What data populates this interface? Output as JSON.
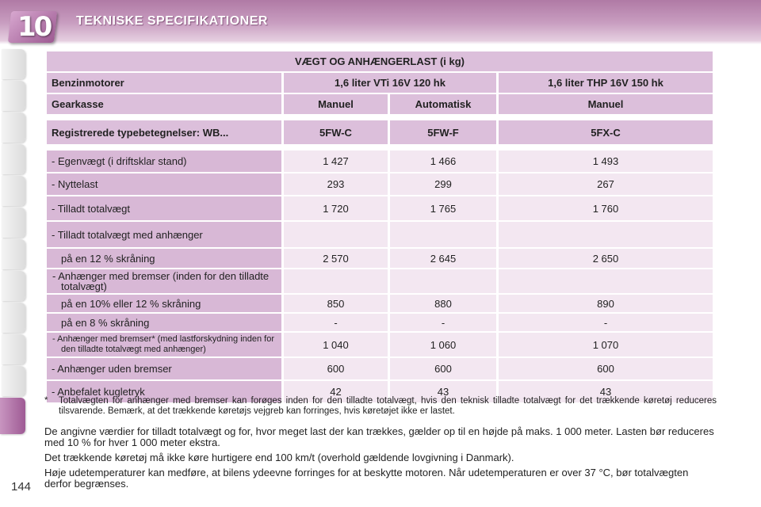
{
  "header": {
    "chapter_number": "10",
    "chapter_title": "TEKNISKE SPECIFIKATIONER"
  },
  "table": {
    "title": "VÆGT OG ANHÆNGERLAST (i kg)",
    "engine_label": "Benzinmotorer",
    "engine_1": "1,6 liter VTi 16V 120 hk",
    "engine_2": "1,6 liter THP 16V 150 hk",
    "gearbox_label": "Gearkasse",
    "gearbox_1": "Manuel",
    "gearbox_2": "Automatisk",
    "gearbox_3": "Manuel",
    "type_label": "Registrerede typebetegnelser: WB...",
    "type_1": "5FW-C",
    "type_2": "5FW-F",
    "type_3": "5FX-C",
    "rows": [
      {
        "label": "- Egenvægt (i driftsklar stand)",
        "v1": "1 427",
        "v2": "1 466",
        "v3": "1 493"
      },
      {
        "label": "- Nyttelast",
        "v1": "293",
        "v2": "299",
        "v3": "267"
      },
      {
        "label": "- Tilladt totalvægt",
        "v1": "1 720",
        "v2": "1 765",
        "v3": "1 760"
      },
      {
        "label": "- Tilladt totalvægt med anhænger",
        "v1": "",
        "v2": "",
        "v3": ""
      },
      {
        "label": "på en 12 % skråning",
        "v1": "2 570",
        "v2": "2 645",
        "v3": "2 650"
      },
      {
        "label": "- Anhænger med bremser (inden for den tilladte totalvægt)",
        "v1": "",
        "v2": "",
        "v3": ""
      },
      {
        "label": "på en 10% eller 12 % skråning",
        "v1": "850",
        "v2": "880",
        "v3": "890"
      },
      {
        "label": "på en 8 % skråning",
        "v1": "-",
        "v2": "-",
        "v3": "-"
      },
      {
        "label": "- Anhænger med bremser* (med lastforskydning inden for den tilladte totalvægt med anhænger)",
        "v1": "1 040",
        "v2": "1 060",
        "v3": "1 070"
      },
      {
        "label": "- Anhænger uden bremser",
        "v1": "600",
        "v2": "600",
        "v3": "600"
      },
      {
        "label": "- Anbefalet kugletryk",
        "v1": "42",
        "v2": "43",
        "v3": "43"
      }
    ]
  },
  "notes": {
    "footnote_star": "*",
    "footnote_text": "Totalvægten for anhænger med bremser kan forøges inden for den tilladte totalvægt, hvis den teknisk tilladte totalvægt for det trækkende køretøj reduceres tilsvarende. Bemærk, at det trækkende køretøjs vejgreb kan forringes, hvis køretøjet ikke er lastet.",
    "para_1": "De angivne værdier for tilladt totalvægt og for, hvor meget last der kan trækkes, gælder op til en højde på maks. 1 000 meter. Lasten bør reduceres med 10 % for hver 1 000 meter ekstra.",
    "para_2": "Det trækkende køretøj må ikke køre hurtigere end 100 km/t (overhold gældende lovgivning i Danmark).",
    "para_3": "Høje udetemperaturer kan medføre, at bilens ydeevne forringes for at beskytte motoren. Når udetemperaturen er over 37 °C, bør totalvægten derfor begrænses."
  },
  "page_number": "144"
}
